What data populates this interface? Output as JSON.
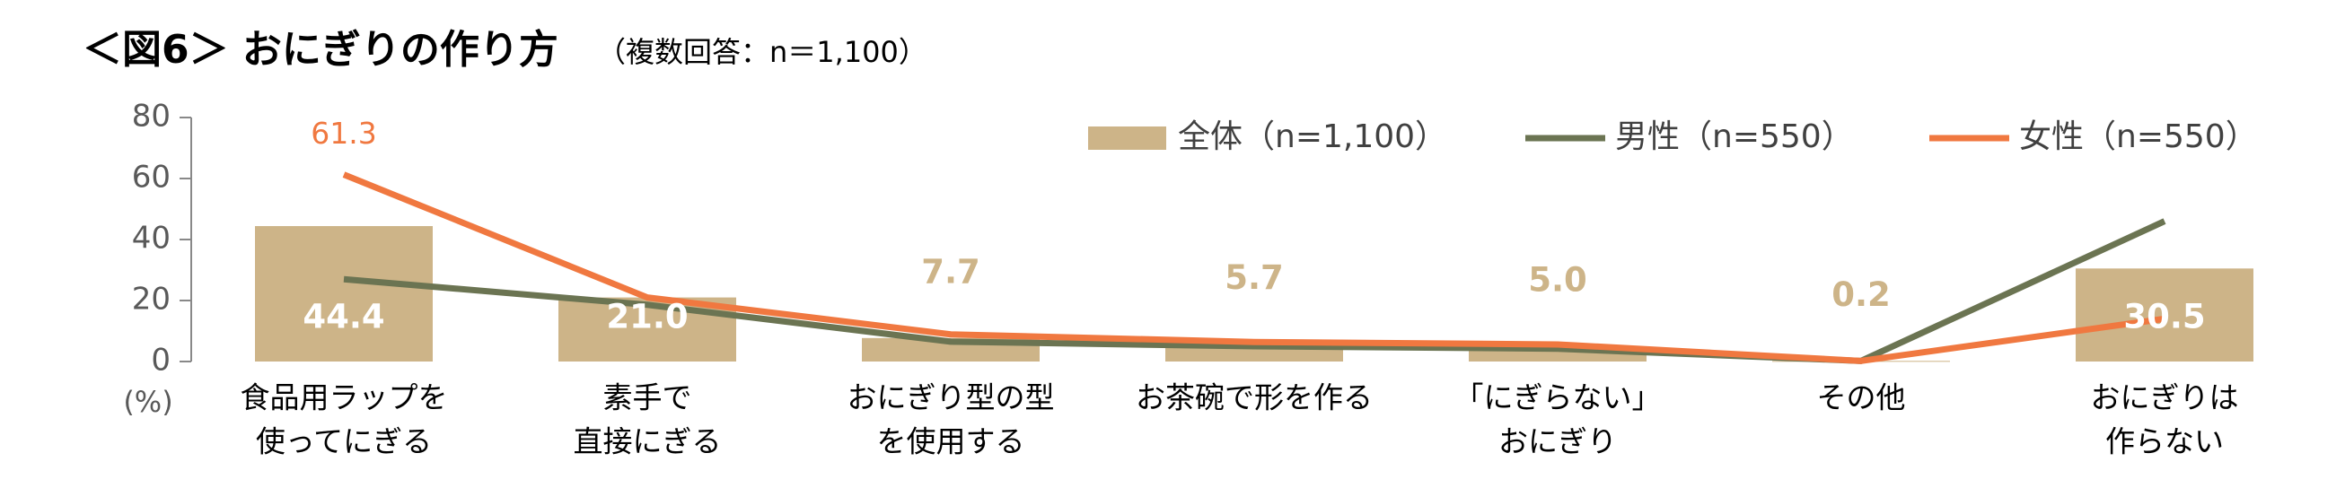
{
  "chart_data": {
    "type": "bar-line",
    "title": "＜図6＞ おにぎりの作り方",
    "subtitle": "（複数回答：n＝1,100）",
    "y_unit": "(%)",
    "categories": [
      [
        "食品用ラップを",
        "使ってにぎる"
      ],
      [
        "素手で",
        "直接にぎる"
      ],
      [
        "おにぎり型の型",
        "を使用する"
      ],
      [
        "お茶碗で形を作る"
      ],
      [
        "「にぎらない」",
        "おにぎり"
      ],
      [
        "その他"
      ],
      [
        "おにぎりは",
        "作らない"
      ]
    ],
    "series": [
      {
        "name": "全体（n=1,100）",
        "type": "bar",
        "color": "#cdb488",
        "values": [
          44.4,
          21.0,
          7.7,
          5.7,
          5.0,
          0.2,
          30.5
        ],
        "value_labels": [
          "44.4",
          "21.0",
          "7.7",
          "5.7",
          "5.0",
          "0.2",
          "30.5"
        ]
      },
      {
        "name": "男性（n=550）",
        "type": "line",
        "color": "#6b7452",
        "values": [
          27.0,
          18.6,
          6.5,
          5.0,
          4.2,
          0.2,
          46.0
        ]
      },
      {
        "name": "女性（n=550）",
        "type": "line",
        "color": "#f07840",
        "values": [
          61.3,
          21.0,
          8.9,
          6.4,
          5.6,
          0.2,
          14.0
        ],
        "value_labels": [
          "61.3",
          null,
          null,
          null,
          null,
          null,
          null
        ]
      }
    ],
    "ylim": [
      0,
      80
    ],
    "yticks": [
      0,
      20,
      40,
      60,
      80
    ],
    "legend": "top-right"
  }
}
